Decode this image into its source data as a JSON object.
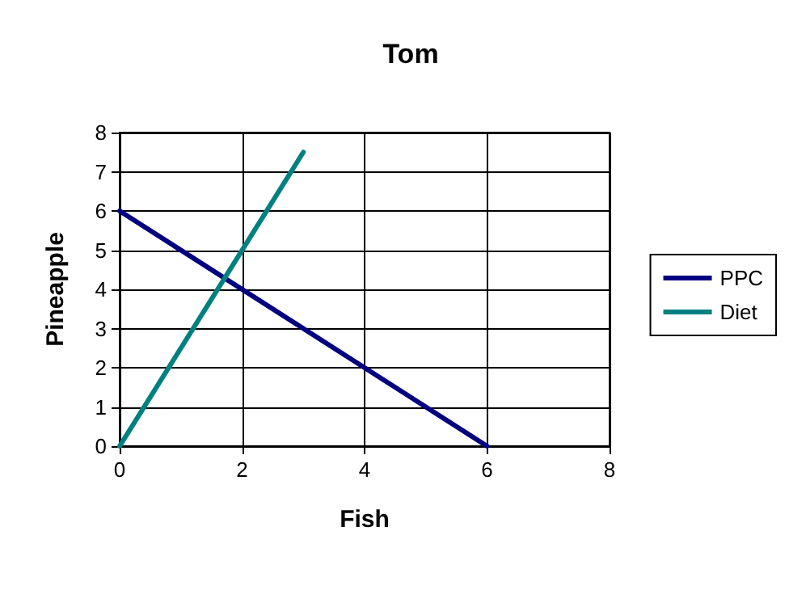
{
  "chart_data": {
    "type": "line",
    "title": "Tom",
    "xlabel": "Fish",
    "ylabel": "Pineapple",
    "xlim": [
      0,
      8
    ],
    "xticks": [
      0,
      2,
      4,
      6,
      8
    ],
    "ylim": [
      0,
      8
    ],
    "yticks": [
      0,
      1,
      2,
      3,
      4,
      5,
      6,
      7,
      8
    ],
    "grid": true,
    "legend": "right",
    "marker": "none",
    "line_style": "solid",
    "series": [
      {
        "name": "PPC",
        "color": "#000080",
        "x": [
          0,
          6
        ],
        "values": [
          6,
          0
        ]
      },
      {
        "name": "Diet",
        "color": "#008080",
        "x": [
          0,
          3
        ],
        "values": [
          0,
          7.5
        ]
      }
    ]
  }
}
